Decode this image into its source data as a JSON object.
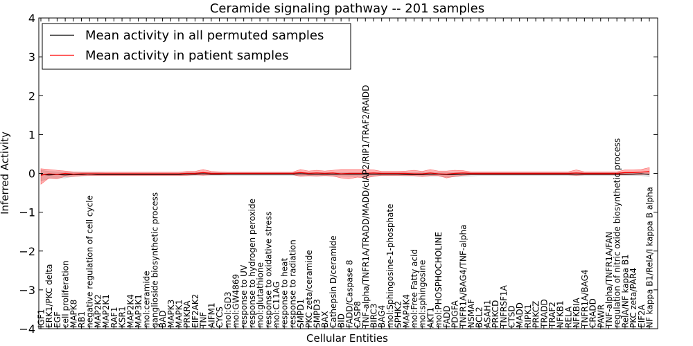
{
  "chart_data": {
    "type": "line",
    "title": "Ceramide signaling pathway -- 201 samples",
    "xlabel": "Cellular Entities",
    "ylabel": "Inferred Activity",
    "ylim": [
      -4,
      4
    ],
    "yticks": [
      -4,
      -3,
      -2,
      -1,
      0,
      1,
      2,
      3,
      4
    ],
    "grid": false,
    "legend_position": "top-left",
    "categories": [
      "IGF1",
      "ERK1/PKC delta",
      "EGF",
      "cell proliferation",
      "MAPK8",
      "RB1",
      "negative regulation of cell cycle",
      "MAP2K2",
      "MAP2K1",
      "RAF1",
      "KSR1",
      "MAP2K4",
      "MAP3K1",
      "mol:ceramide",
      "ganglioside biosynthetic process",
      "BAD",
      "MAPK3",
      "MAPK1",
      "PRKRA",
      "EIF2AK2",
      "TNF",
      "AIFM1",
      "CYCS",
      "mol:GD3",
      "mol:GW4869",
      "response to UV",
      "response to hydrogen peroxide",
      "mol:glutathione",
      "response to oxidative stress",
      "mol:C11AG",
      "response to heat",
      "response to radiation",
      "SMPD1",
      "PKC zeta/ceramide",
      "SMPD3",
      "BAX",
      "Cathepsin D/ceramide",
      "BID",
      "FADD/Caspase 8",
      "CASP8",
      "TNF-alpha/TNFR1A/TRADD/MADD/cIAP2/RIP1/TRAF2/RAIDD",
      "BIRC3",
      "BAG4",
      "mol:Sphingosine-1-phosphate",
      "SPHK2",
      "MAP4K4",
      "mol:Free Fatty acid",
      "mol:sphingosine",
      "AKT1",
      "mol:PHOSPHOCHOLINE",
      "FADD",
      "PDGFA",
      "TNFR1A/BAG4/TNF-alpha",
      "NSMAF",
      "BCL2",
      "ASAH1",
      "PRKCD",
      "TNFRSF1A",
      "CTSD",
      "MADD",
      "RIPK1",
      "PRKCZ",
      "TRADD",
      "TRAF2",
      "NFKB1",
      "RELA",
      "NFKBIA",
      "TNFR1A/BAG4",
      "CRADD",
      "PAWR",
      "TNF-alpha/TNFR1A/FAN",
      "regulation of nitric oxide biosynthetic process",
      "RelA/NF kappa B1",
      "PKC zeta/PAR4",
      "EIF2A",
      "NF kappa B1/RelA/I kappa B alpha"
    ],
    "series": [
      {
        "name": "Mean activity in all permuted samples",
        "color": "#000000",
        "values": [
          -0.03,
          -0.04,
          -0.03,
          -0.04,
          -0.03,
          -0.03,
          -0.02,
          -0.03,
          -0.03,
          -0.03,
          -0.03,
          -0.03,
          -0.03,
          -0.03,
          -0.03,
          -0.03,
          -0.03,
          -0.03,
          -0.02,
          -0.02,
          -0.01,
          -0.02,
          -0.02,
          -0.02,
          -0.02,
          -0.02,
          -0.02,
          -0.02,
          -0.02,
          -0.02,
          -0.02,
          -0.02,
          -0.01,
          -0.02,
          -0.02,
          -0.02,
          -0.02,
          -0.02,
          -0.02,
          -0.02,
          -0.02,
          -0.02,
          -0.02,
          -0.02,
          -0.02,
          -0.03,
          -0.03,
          -0.03,
          -0.02,
          -0.02,
          -0.03,
          -0.03,
          -0.02,
          -0.02,
          -0.02,
          -0.02,
          -0.02,
          -0.02,
          -0.02,
          -0.02,
          -0.02,
          -0.02,
          -0.02,
          -0.02,
          -0.02,
          -0.02,
          -0.02,
          -0.02,
          -0.02,
          -0.02,
          -0.02,
          -0.02,
          -0.02,
          -0.02,
          -0.01,
          -0.03
        ],
        "lower": [
          -0.2,
          -0.13,
          -0.12,
          -0.12,
          -0.08,
          -0.07,
          -0.06,
          -0.06,
          -0.06,
          -0.06,
          -0.06,
          -0.06,
          -0.06,
          -0.06,
          -0.06,
          -0.06,
          -0.06,
          -0.06,
          -0.05,
          -0.05,
          -0.04,
          -0.05,
          -0.05,
          -0.05,
          -0.05,
          -0.05,
          -0.05,
          -0.05,
          -0.05,
          -0.05,
          -0.05,
          -0.05,
          -0.06,
          -0.07,
          -0.07,
          -0.06,
          -0.07,
          -0.07,
          -0.08,
          -0.08,
          -0.08,
          -0.07,
          -0.06,
          -0.06,
          -0.06,
          -0.07,
          -0.07,
          -0.08,
          -0.07,
          -0.07,
          -0.1,
          -0.09,
          -0.08,
          -0.07,
          -0.06,
          -0.06,
          -0.06,
          -0.06,
          -0.06,
          -0.06,
          -0.06,
          -0.06,
          -0.06,
          -0.06,
          -0.06,
          -0.06,
          -0.06,
          -0.06,
          -0.06,
          -0.06,
          -0.06,
          -0.06,
          -0.06,
          -0.06,
          -0.06,
          -0.09
        ],
        "upper": [
          0.08,
          0.05,
          0.04,
          0.03,
          0.02,
          0.02,
          0.02,
          0.02,
          0.01,
          0.01,
          0.01,
          0.01,
          0.01,
          0.01,
          0.01,
          0.01,
          0.01,
          0.01,
          0.02,
          0.02,
          0.02,
          0.02,
          0.02,
          0.02,
          0.02,
          0.02,
          0.02,
          0.02,
          0.02,
          0.02,
          0.02,
          0.02,
          0.03,
          0.02,
          0.02,
          0.02,
          0.02,
          0.02,
          0.02,
          0.02,
          0.02,
          0.02,
          0.02,
          0.02,
          0.02,
          0.02,
          0.02,
          0.02,
          0.02,
          0.02,
          0.02,
          0.02,
          0.02,
          0.02,
          0.02,
          0.02,
          0.02,
          0.02,
          0.02,
          0.02,
          0.02,
          0.02,
          0.02,
          0.02,
          0.02,
          0.02,
          0.02,
          0.02,
          0.02,
          0.02,
          0.02,
          0.02,
          0.02,
          0.02,
          0.02,
          0.03
        ]
      },
      {
        "name": "Mean activity in patient samples",
        "color": "#ff0000",
        "values": [
          -0.05,
          -0.01,
          -0.03,
          0.0,
          -0.02,
          -0.01,
          -0.01,
          -0.01,
          -0.01,
          -0.01,
          -0.01,
          -0.01,
          -0.01,
          -0.01,
          -0.01,
          -0.01,
          -0.01,
          -0.01,
          0.0,
          0.0,
          0.02,
          0.0,
          0.0,
          0.0,
          0.0,
          0.0,
          0.0,
          0.0,
          0.0,
          0.0,
          0.0,
          0.0,
          0.02,
          0.0,
          0.01,
          0.0,
          0.01,
          -0.01,
          0.0,
          0.0,
          0.0,
          0.01,
          0.0,
          0.0,
          0.0,
          0.0,
          -0.01,
          -0.01,
          0.01,
          -0.01,
          -0.02,
          0.0,
          0.01,
          0.0,
          0.0,
          0.0,
          0.0,
          0.0,
          0.0,
          0.0,
          0.0,
          0.0,
          0.0,
          0.0,
          0.0,
          0.0,
          0.01,
          0.0,
          0.0,
          0.0,
          0.0,
          0.0,
          0.02,
          0.02,
          0.03,
          0.05
        ],
        "lower": [
          -0.28,
          -0.12,
          -0.14,
          -0.08,
          -0.08,
          -0.06,
          -0.05,
          -0.05,
          -0.05,
          -0.05,
          -0.05,
          -0.05,
          -0.05,
          -0.05,
          -0.05,
          -0.05,
          -0.05,
          -0.05,
          -0.05,
          -0.04,
          -0.05,
          -0.04,
          -0.04,
          -0.03,
          -0.03,
          -0.03,
          -0.03,
          -0.03,
          -0.03,
          -0.03,
          -0.03,
          -0.03,
          -0.08,
          -0.06,
          -0.07,
          -0.06,
          -0.07,
          -0.12,
          -0.14,
          -0.1,
          -0.12,
          -0.08,
          -0.05,
          -0.05,
          -0.05,
          -0.05,
          -0.06,
          -0.08,
          -0.06,
          -0.06,
          -0.12,
          -0.08,
          -0.05,
          -0.04,
          -0.04,
          -0.04,
          -0.04,
          -0.04,
          -0.04,
          -0.04,
          -0.04,
          -0.04,
          -0.04,
          -0.04,
          -0.04,
          -0.04,
          -0.05,
          -0.04,
          -0.04,
          -0.04,
          -0.04,
          -0.04,
          -0.04,
          -0.03,
          -0.03,
          -0.02
        ],
        "upper": [
          0.12,
          0.1,
          0.08,
          0.06,
          0.04,
          0.03,
          0.03,
          0.03,
          0.03,
          0.03,
          0.03,
          0.03,
          0.03,
          0.03,
          0.03,
          0.03,
          0.03,
          0.03,
          0.05,
          0.05,
          0.1,
          0.05,
          0.04,
          0.03,
          0.03,
          0.03,
          0.03,
          0.03,
          0.03,
          0.03,
          0.03,
          0.03,
          0.1,
          0.06,
          0.08,
          0.06,
          0.08,
          0.1,
          0.1,
          0.1,
          0.1,
          0.09,
          0.05,
          0.05,
          0.05,
          0.06,
          0.08,
          0.05,
          0.1,
          0.06,
          0.06,
          0.08,
          0.07,
          0.04,
          0.04,
          0.04,
          0.04,
          0.04,
          0.04,
          0.04,
          0.04,
          0.04,
          0.04,
          0.04,
          0.04,
          0.04,
          0.09,
          0.04,
          0.04,
          0.04,
          0.04,
          0.04,
          0.09,
          0.09,
          0.1,
          0.15
        ]
      }
    ]
  }
}
